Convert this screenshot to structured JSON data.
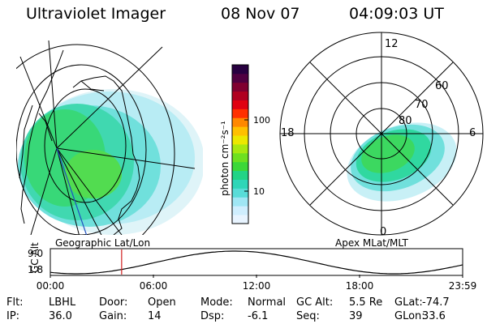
{
  "header": {
    "title": "Ultraviolet Imager",
    "date": "08 Nov 07",
    "time": "04:09:03 UT"
  },
  "colorbar": {
    "label": "photon cm⁻²s⁻¹",
    "ticks": [
      {
        "label": "100",
        "value": 100
      },
      {
        "label": "10",
        "value": 10
      }
    ],
    "colors": [
      "#e8f4ff",
      "#cfeefe",
      "#9fe6f4",
      "#58dcd8",
      "#2ed6b8",
      "#22d486",
      "#3cd838",
      "#6ee020",
      "#a8e810",
      "#ece800",
      "#ffc000",
      "#ff8800",
      "#ff3000",
      "#e00010",
      "#b00020",
      "#800030",
      "#500040",
      "#280040"
    ]
  },
  "left_panel": {
    "label": "Geographic Lat/Lon"
  },
  "right_panel": {
    "label": "Apex MLat/MLT",
    "mlt_labels": {
      "top": "12",
      "left": "18",
      "right": "6",
      "bottom": "0"
    },
    "lat_labels": [
      "60",
      "70",
      "80"
    ]
  },
  "gc_alt_chart": {
    "ylabel": "GC Alt",
    "yticks": [
      "9.0",
      "1.8"
    ],
    "xticks": [
      "00:00",
      "06:00",
      "12:00",
      "18:00",
      "23:59"
    ],
    "cursor_time_hours": 4.15
  },
  "status": {
    "row1": [
      {
        "key": "Flt:",
        "val": "LBHL"
      },
      {
        "key": "Door:",
        "val": "Open"
      },
      {
        "key": "Mode:",
        "val": "Normal"
      },
      {
        "key": "GC Alt:",
        "val": "5.5 Re"
      },
      {
        "key": "GLat:",
        "val": "-74.7"
      }
    ],
    "row2": [
      {
        "key": "IP:",
        "val": "36.0"
      },
      {
        "key": "Gain:",
        "val": "14"
      },
      {
        "key": "Dsp:",
        "val": "-6.1"
      },
      {
        "key": "Seq:",
        "val": "39"
      },
      {
        "key": "GLon:",
        "val": "33.6"
      }
    ]
  }
}
